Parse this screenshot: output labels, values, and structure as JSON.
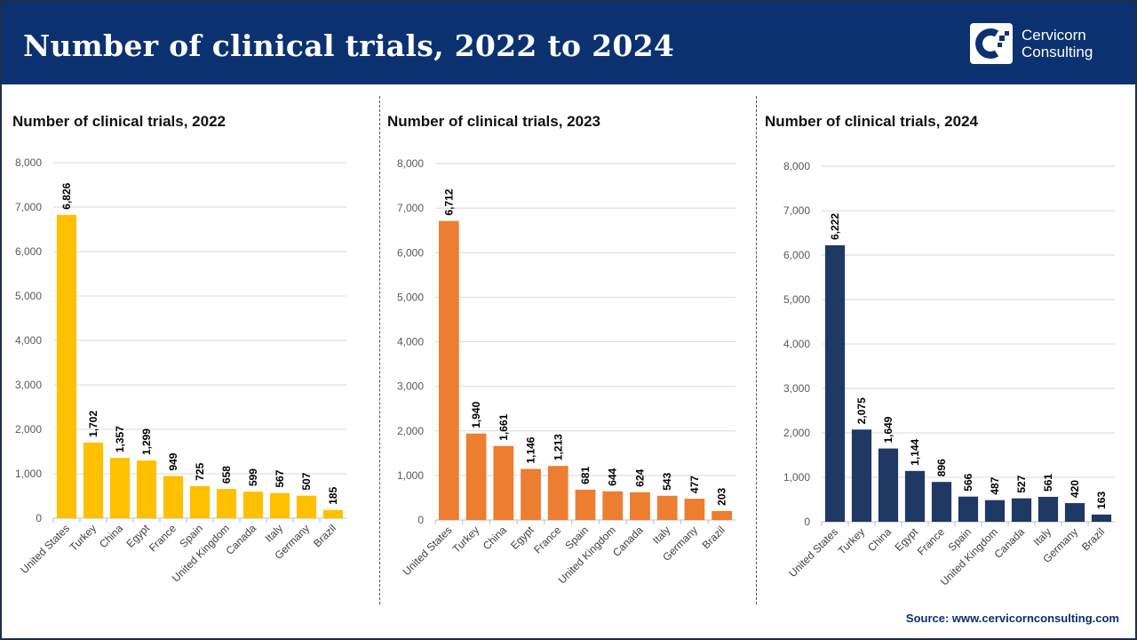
{
  "header": {
    "title": "Number of clinical trials, 2022 to 2024",
    "logo_line1": "Cervicorn",
    "logo_line2": "Consulting"
  },
  "source": "Source: www.cervicornconsulting.com",
  "chart_data": [
    {
      "type": "bar",
      "title": "Number of clinical trials, 2022",
      "color": "#FFC000",
      "categories": [
        "United States",
        "Turkey",
        "China",
        "Egypt",
        "France",
        "Spain",
        "United Kingdom",
        "Canada",
        "Italy",
        "Germany",
        "Brazil"
      ],
      "values": [
        6826,
        1702,
        1357,
        1299,
        949,
        725,
        658,
        599,
        567,
        507,
        185
      ],
      "labels": [
        "6,826",
        "1,702",
        "1,357",
        "1,299",
        "949",
        "725",
        "658",
        "599",
        "567",
        "507",
        "185"
      ],
      "ylim": [
        0,
        8000
      ],
      "yticks": [
        "0",
        "1,000",
        "2,000",
        "3,000",
        "4,000",
        "5,000",
        "6,000",
        "7,000",
        "8,000"
      ],
      "grid": true
    },
    {
      "type": "bar",
      "title": "Number of clinical trials, 2023",
      "color": "#ED7D31",
      "categories": [
        "United States",
        "Turkey",
        "China",
        "Egypt",
        "France",
        "Spain",
        "United Kingdom",
        "Canada",
        "Italy",
        "Germany",
        "Brazil"
      ],
      "values": [
        6712,
        1940,
        1661,
        1146,
        1213,
        681,
        644,
        624,
        543,
        477,
        203
      ],
      "labels": [
        "6,712",
        "1,940",
        "1,661",
        "1,146",
        "1,213",
        "681",
        "644",
        "624",
        "543",
        "477",
        "203"
      ],
      "ylim": [
        0,
        8000
      ],
      "yticks": [
        "0",
        "1,000",
        "2,000",
        "3,000",
        "4,000",
        "5,000",
        "6,000",
        "7,000",
        "8,000"
      ],
      "grid": true
    },
    {
      "type": "bar",
      "title": "Number of clinical trials, 2024",
      "color": "#1F3864",
      "categories": [
        "United States",
        "Turkey",
        "China",
        "Egypt",
        "France",
        "Spain",
        "United Kingdom",
        "Canada",
        "Italy",
        "Germany",
        "Brazil"
      ],
      "values": [
        6222,
        2075,
        1649,
        1144,
        896,
        566,
        487,
        527,
        561,
        420,
        163
      ],
      "labels": [
        "6,222",
        "2,075",
        "1,649",
        "1,144",
        "896",
        "566",
        "487",
        "527",
        "561",
        "420",
        "163"
      ],
      "ylim": [
        0,
        8000
      ],
      "yticks": [
        "0",
        "1,000",
        "2,000",
        "3,000",
        "4,000",
        "5,000",
        "6,000",
        "7,000",
        "8,000"
      ],
      "grid": true
    }
  ]
}
